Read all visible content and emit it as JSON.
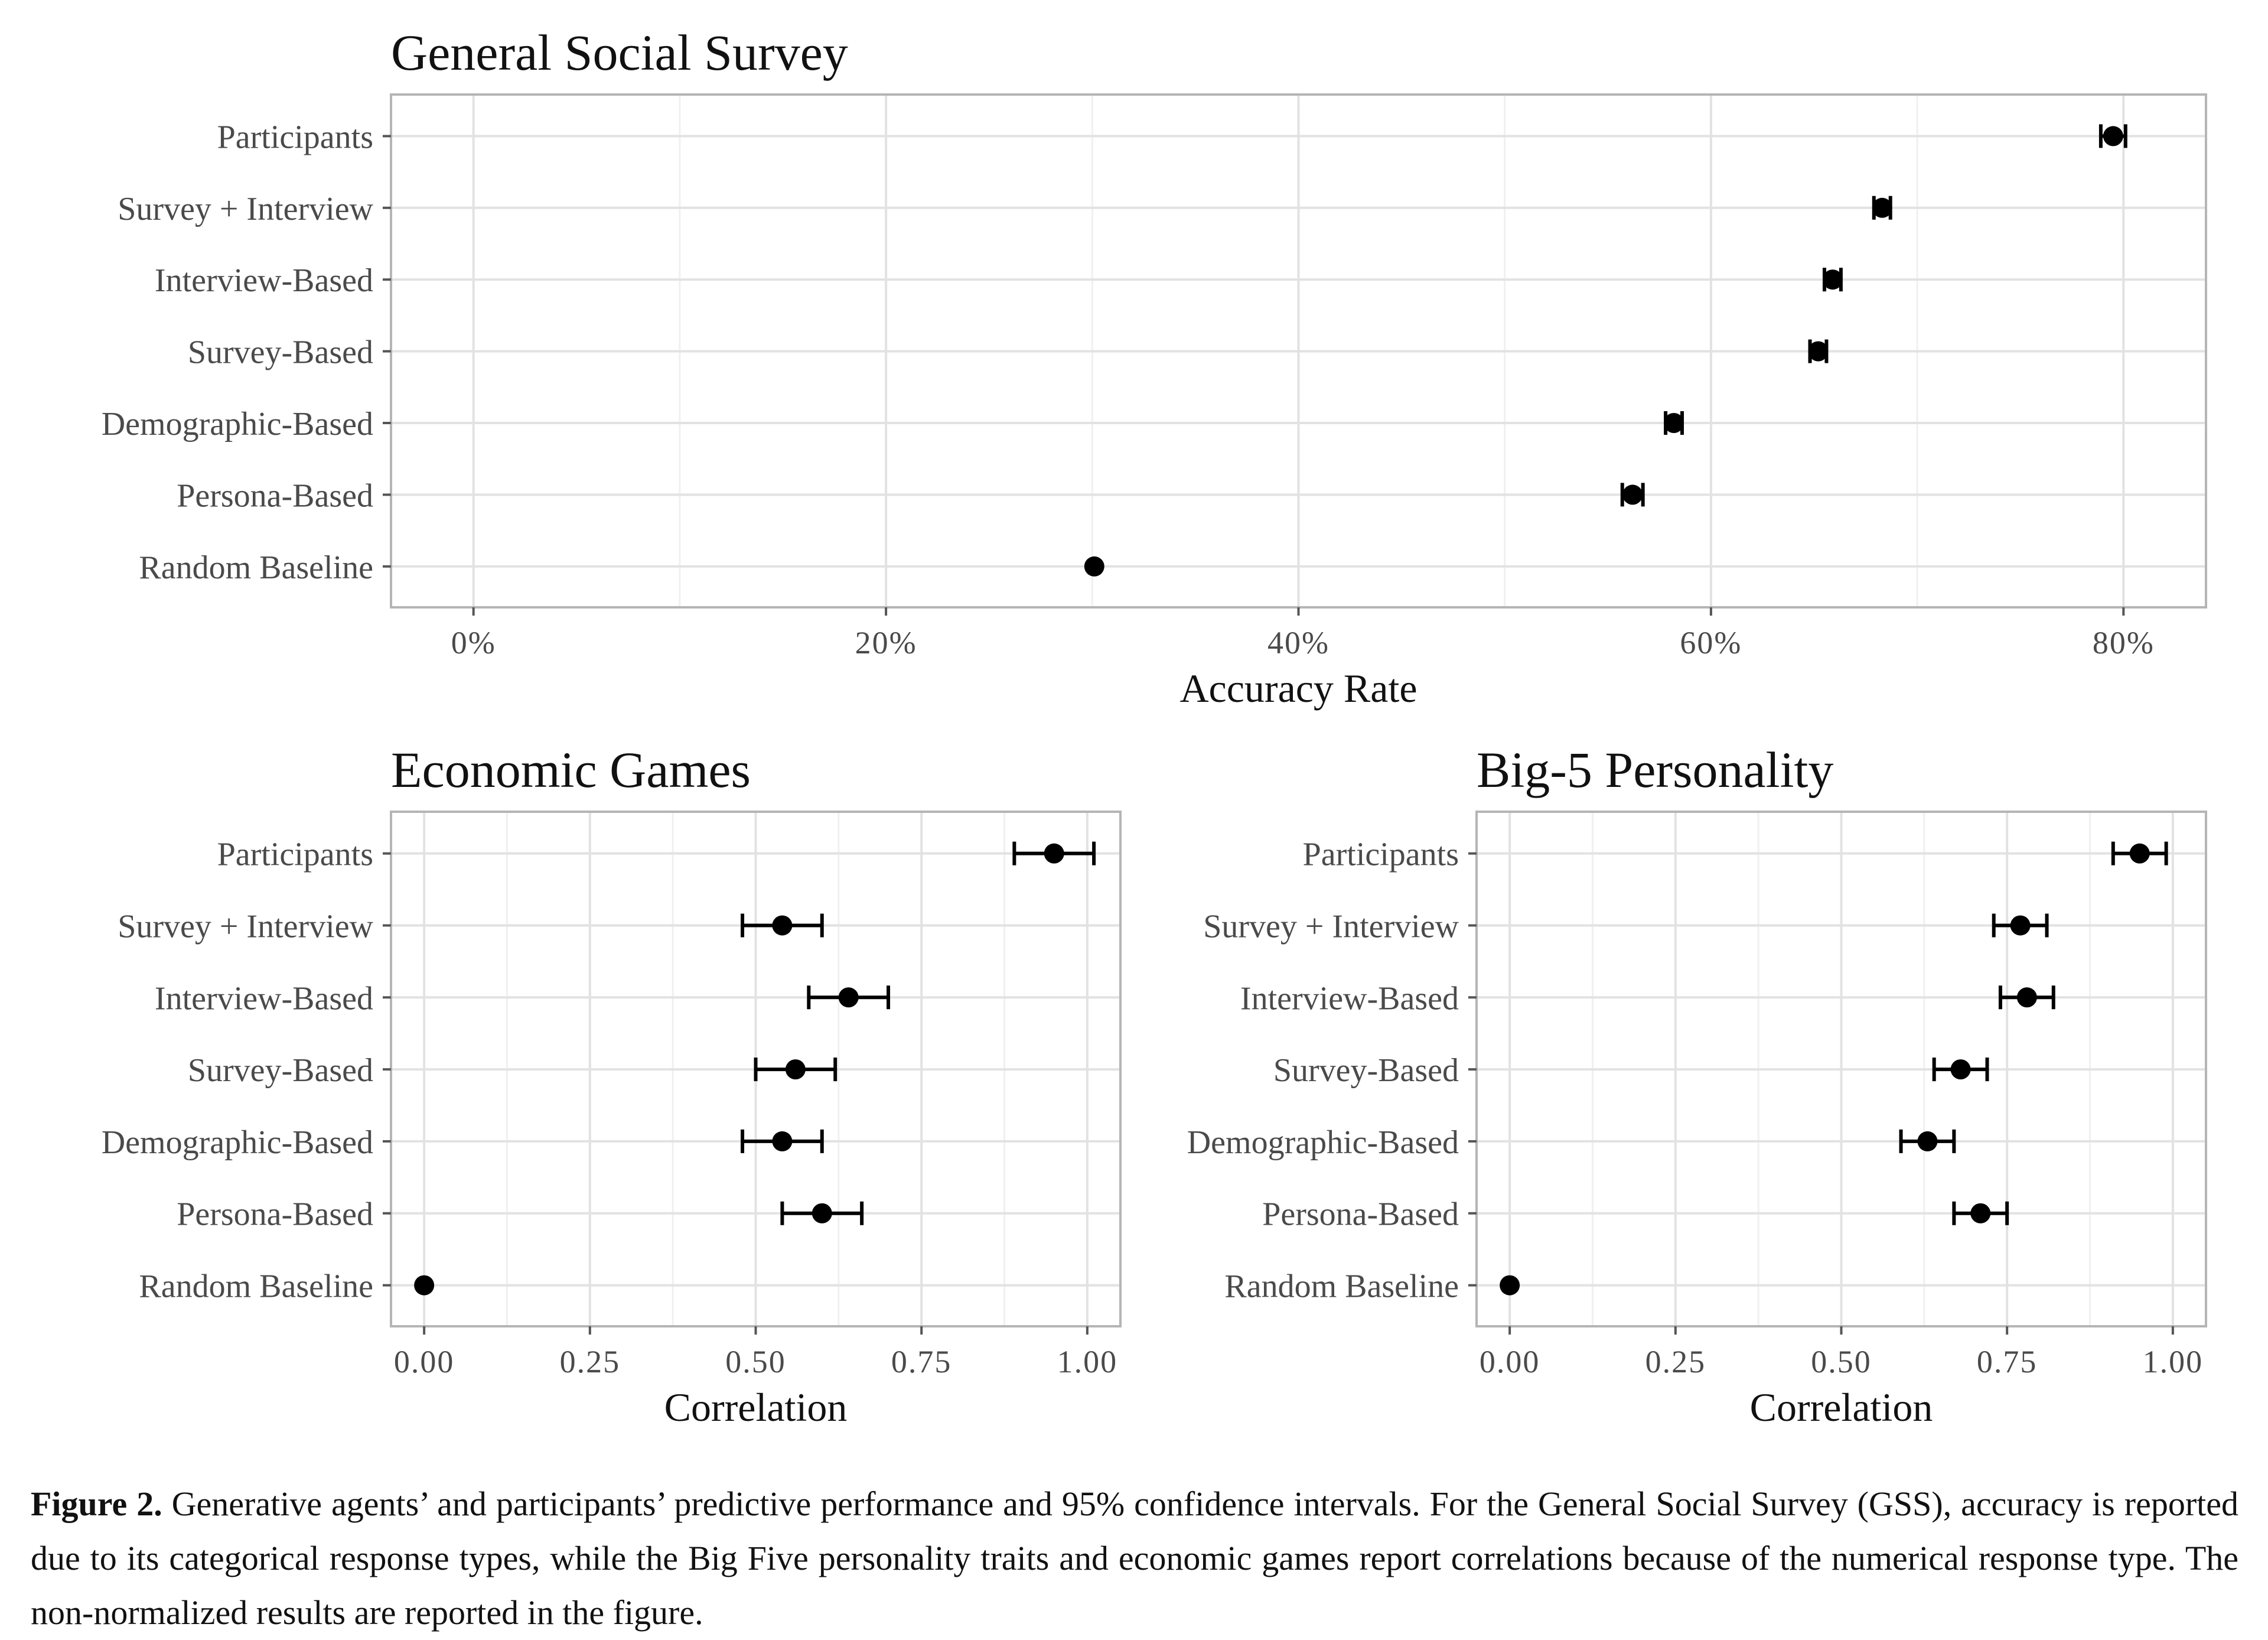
{
  "chart_data": [
    {
      "type": "scatter",
      "title": "General Social Survey",
      "xlabel": "Accuracy Rate",
      "ylabel": "",
      "categories": [
        "Participants",
        "Survey + Interview",
        "Interview-Based",
        "Survey-Based",
        "Demographic-Based",
        "Persona-Based",
        "Random Baseline"
      ],
      "values": [
        0.795,
        0.683,
        0.659,
        0.652,
        0.582,
        0.562,
        0.301
      ],
      "ci_low": [
        0.789,
        0.679,
        0.655,
        0.648,
        0.578,
        0.557,
        0.301
      ],
      "ci_high": [
        0.801,
        0.687,
        0.663,
        0.656,
        0.586,
        0.567,
        0.301
      ],
      "xlim": [
        -0.04,
        0.84
      ],
      "xticks": [
        0,
        0.2,
        0.4,
        0.6,
        0.8
      ],
      "xtick_labels": [
        "0%",
        "20%",
        "40%",
        "60%",
        "80%"
      ],
      "grid": true,
      "error_bars": "95% confidence interval"
    },
    {
      "type": "scatter",
      "title": "Economic Games",
      "xlabel": "Correlation",
      "ylabel": "",
      "categories": [
        "Participants",
        "Survey + Interview",
        "Interview-Based",
        "Survey-Based",
        "Demographic-Based",
        "Persona-Based",
        "Random Baseline"
      ],
      "values": [
        0.95,
        0.54,
        0.64,
        0.56,
        0.54,
        0.6,
        0.0
      ],
      "ci_low": [
        0.89,
        0.48,
        0.58,
        0.5,
        0.48,
        0.54,
        0.0
      ],
      "ci_high": [
        1.01,
        0.6,
        0.7,
        0.62,
        0.6,
        0.66,
        0.0
      ],
      "xlim": [
        -0.05,
        1.05
      ],
      "xticks": [
        0,
        0.25,
        0.5,
        0.75,
        1.0
      ],
      "xtick_labels": [
        "0.00",
        "0.25",
        "0.50",
        "0.75",
        "1.00"
      ],
      "grid": true,
      "error_bars": "95% confidence interval"
    },
    {
      "type": "scatter",
      "title": "Big-5 Personality",
      "xlabel": "Correlation",
      "ylabel": "",
      "categories": [
        "Participants",
        "Survey + Interview",
        "Interview-Based",
        "Survey-Based",
        "Demographic-Based",
        "Persona-Based",
        "Random Baseline"
      ],
      "values": [
        0.95,
        0.77,
        0.78,
        0.68,
        0.63,
        0.71,
        0.0
      ],
      "ci_low": [
        0.91,
        0.73,
        0.74,
        0.64,
        0.59,
        0.67,
        0.0
      ],
      "ci_high": [
        0.99,
        0.81,
        0.82,
        0.72,
        0.67,
        0.75,
        0.0
      ],
      "xlim": [
        -0.05,
        1.05
      ],
      "xticks": [
        0,
        0.25,
        0.5,
        0.75,
        1.0
      ],
      "xtick_labels": [
        "0.00",
        "0.25",
        "0.50",
        "0.75",
        "1.00"
      ],
      "grid": true,
      "error_bars": "95% confidence interval"
    }
  ],
  "caption": {
    "label": "Figure 2.",
    "text": " Generative agents’ and participants’ predictive performance and 95% confidence intervals. For the General Social Survey (GSS), accuracy is reported due to its categorical response types, while the Big Five personality traits and economic games report correlations because of the numerical response type. The non-normalized results are reported in the figure."
  }
}
